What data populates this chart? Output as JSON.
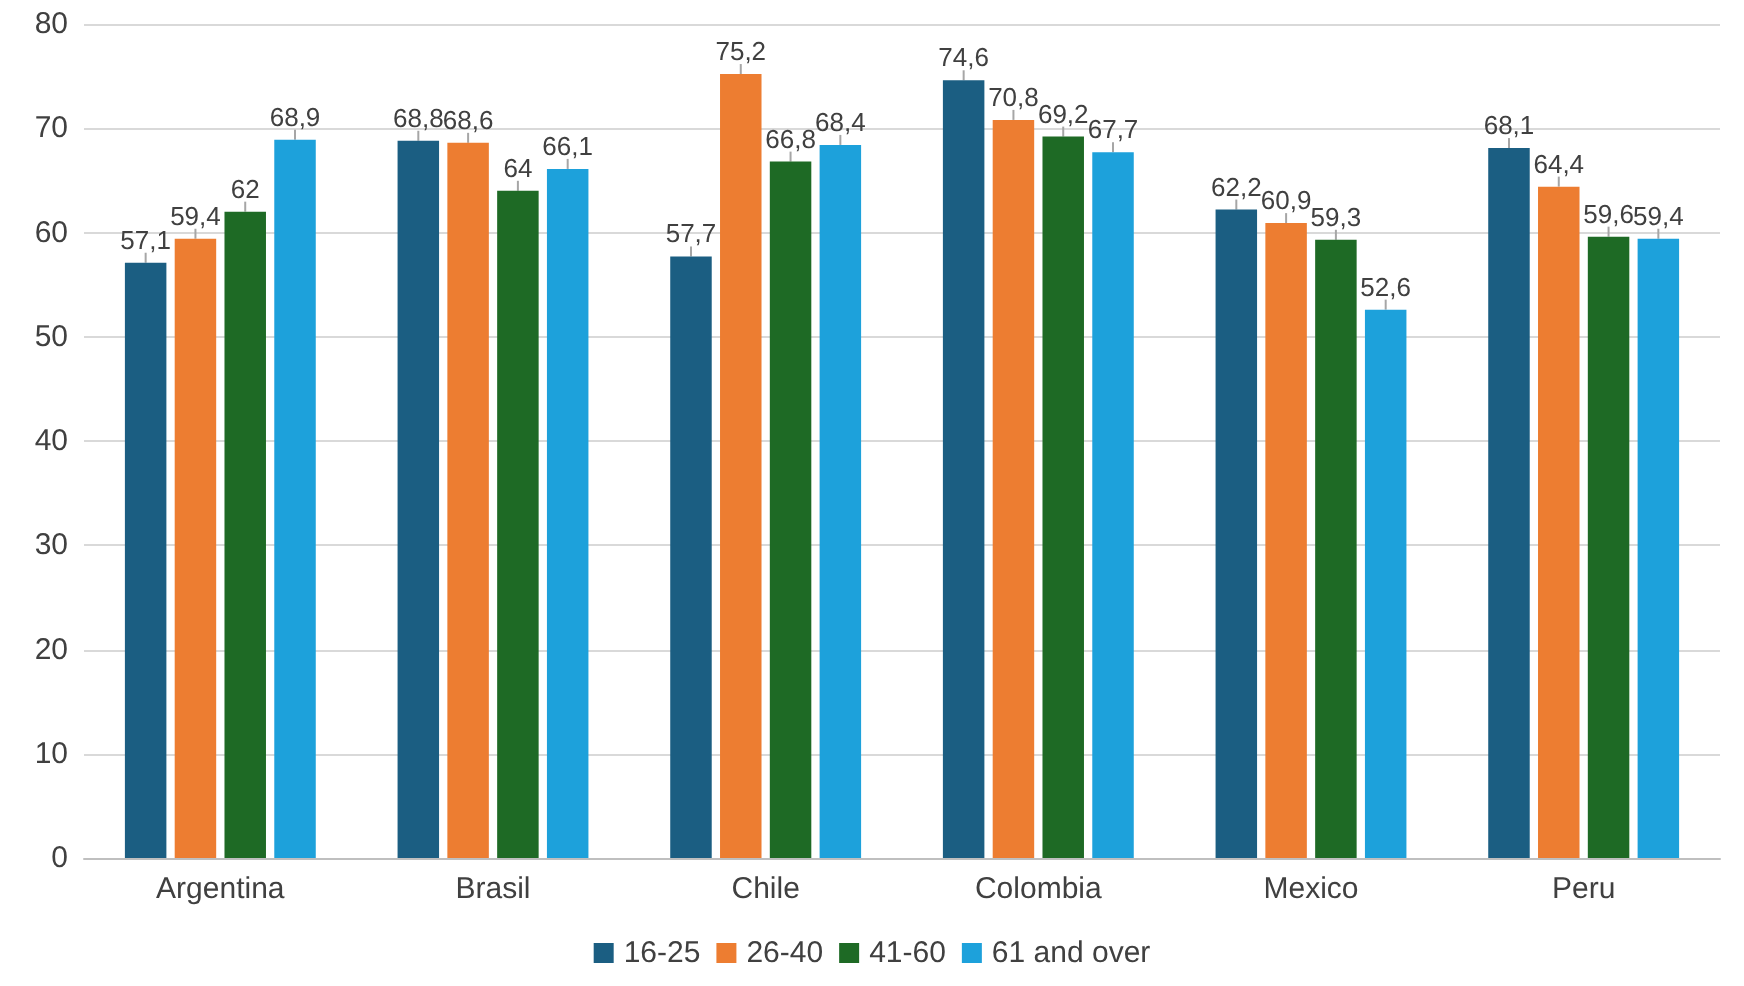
{
  "chart_data": {
    "type": "bar",
    "categories": [
      "Argentina",
      "Brasil",
      "Chile",
      "Colombia",
      "Mexico",
      "Peru"
    ],
    "series": [
      {
        "name": "16-25",
        "color": "#1b5e82",
        "values": [
          57.1,
          68.8,
          57.7,
          74.6,
          62.2,
          68.1
        ],
        "value_labels": [
          "57,1",
          "68,8",
          "57,7",
          "74,6",
          "62,2",
          "68,1"
        ]
      },
      {
        "name": "26-40",
        "color": "#ed7d31",
        "values": [
          59.4,
          68.6,
          75.2,
          70.8,
          60.9,
          64.4
        ],
        "value_labels": [
          "59,4",
          "68,6",
          "75,2",
          "70,8",
          "60,9",
          "64,4"
        ]
      },
      {
        "name": "41-60",
        "color": "#1e6a25",
        "values": [
          62,
          64,
          66.8,
          69.2,
          59.3,
          59.6
        ],
        "value_labels": [
          "62",
          "64",
          "66,8",
          "69,2",
          "59,3",
          "59,6"
        ]
      },
      {
        "name": "61 and over",
        "color": "#1da1db",
        "values": [
          68.9,
          66.1,
          68.4,
          67.7,
          52.6,
          59.4
        ],
        "value_labels": [
          "68,9",
          "66,1",
          "68,4",
          "67,7",
          "52,6",
          "59,4"
        ]
      }
    ],
    "ylim": [
      0,
      80
    ],
    "yticks": [
      0,
      10,
      20,
      30,
      40,
      50,
      60,
      70,
      80
    ],
    "grid": "y",
    "legend": "bottom"
  }
}
